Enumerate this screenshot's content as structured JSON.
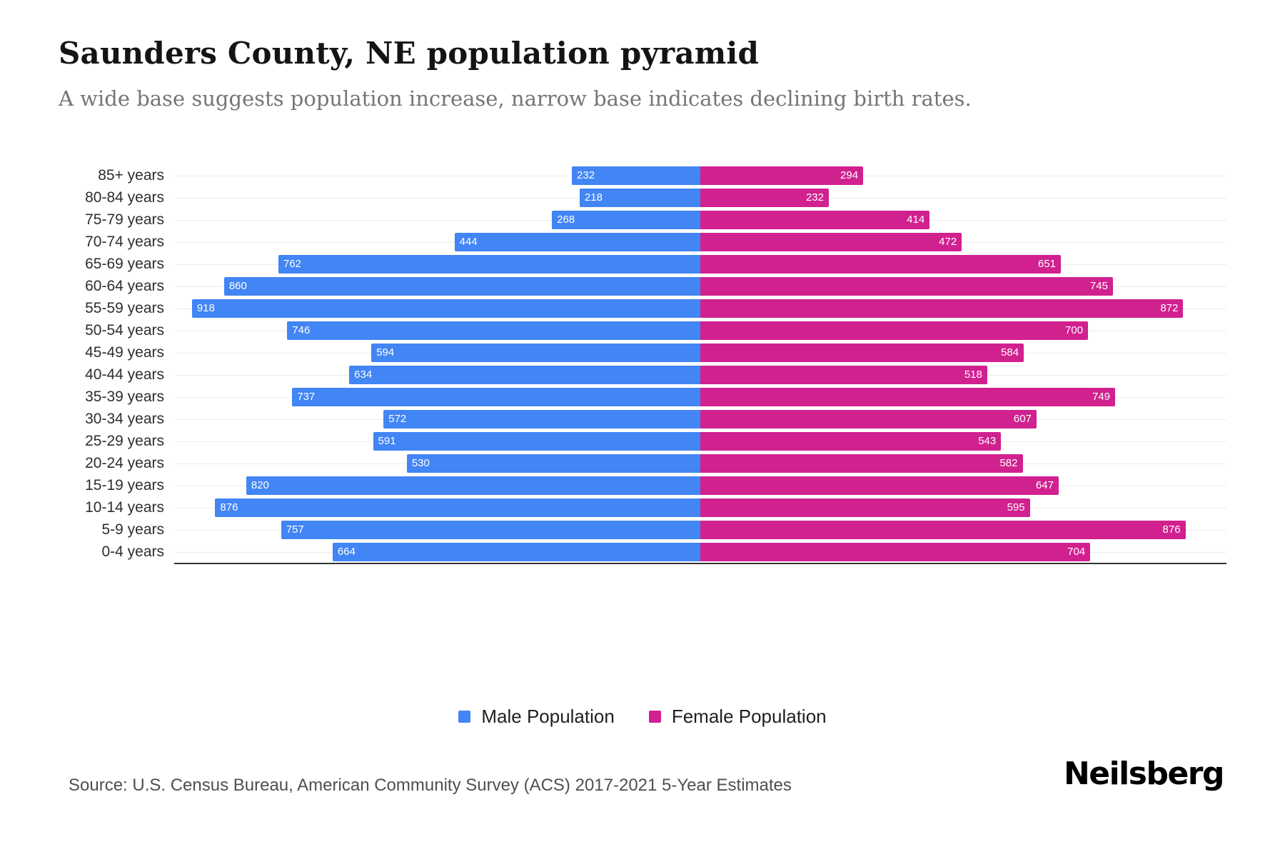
{
  "header": {
    "title": "Saunders County, NE population pyramid",
    "subtitle": "A wide base suggests population increase, narrow base indicates declining birth rates."
  },
  "chart_data": {
    "type": "bar",
    "variant": "population-pyramid",
    "orientation": "horizontal",
    "grid": true,
    "legend_position": "bottom-center",
    "xmax_per_side": 950,
    "categories": [
      "85+ years",
      "80-84 years",
      "75-79 years",
      "70-74 years",
      "65-69 years",
      "60-64 years",
      "55-59 years",
      "50-54 years",
      "45-49 years",
      "40-44 years",
      "35-39 years",
      "30-34 years",
      "25-29 years",
      "20-24 years",
      "15-19 years",
      "10-14 years",
      "5-9 years",
      "0-4 years"
    ],
    "series": [
      {
        "name": "Male Population",
        "color": "#4285F4",
        "side": "left",
        "values": [
          232,
          218,
          268,
          444,
          762,
          860,
          918,
          746,
          594,
          634,
          737,
          572,
          591,
          530,
          820,
          876,
          757,
          664
        ]
      },
      {
        "name": "Female Population",
        "color": "#D0218F",
        "side": "right",
        "values": [
          294,
          232,
          414,
          472,
          651,
          745,
          872,
          700,
          584,
          518,
          749,
          607,
          543,
          582,
          647,
          595,
          876,
          704
        ]
      }
    ],
    "title": "Saunders County, NE population pyramid",
    "xlabel": "",
    "ylabel": ""
  },
  "footer": {
    "source": "Source: U.S. Census Bureau, American Community Survey (ACS) 2017-2021 5-Year Estimates",
    "logo": "Neilsberg"
  },
  "colors": {
    "male": "#4285F4",
    "female": "#D0218F",
    "title": "#141414",
    "subtitle": "#757575",
    "gridline": "#ececec",
    "axis": "#333333"
  }
}
